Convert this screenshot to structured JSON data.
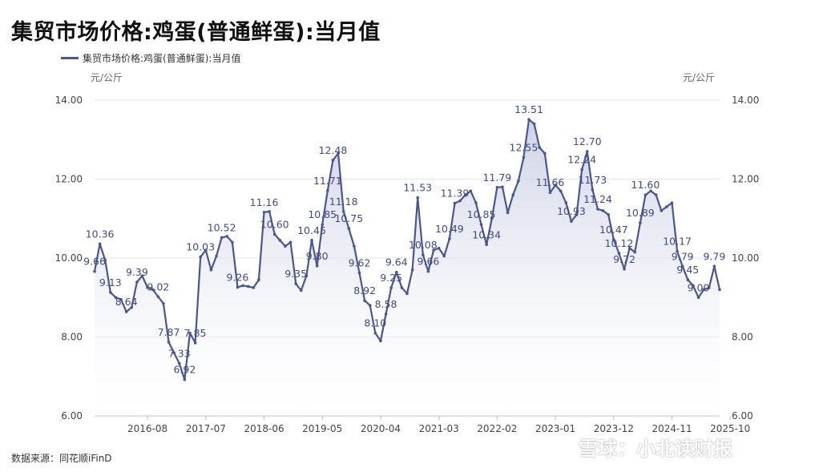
{
  "title": "集贸市场价格:鸡蛋(普通鲜蛋):当月值",
  "source": "数据来源：同花顺iFinD",
  "watermark": "雪球：小北读财报",
  "colors": {
    "line": "#4a568f",
    "area_top": "#c9cde3",
    "area_bottom": "#ffffff",
    "grid": "#e6e6e6"
  },
  "chart_data": {
    "type": "area",
    "unit_left": "元/公斤",
    "unit_right": "元/公斤",
    "ylim": [
      6,
      14
    ],
    "yticks": [
      "6.00",
      "8.00",
      "10.00",
      "12.00",
      "14.00"
    ],
    "x_start": "2015-10",
    "x_end": "2025-10",
    "xticks": [
      "2016-08",
      "2017-07",
      "2018-06",
      "2019-05",
      "2020-04",
      "2021-03",
      "2022-02",
      "2023-01",
      "2023-12",
      "2024-11",
      "2025-10"
    ],
    "legend": "top-left",
    "grid": true,
    "series": [
      {
        "name": "集贸市场价格:鸡蛋(普通鲜蛋):当月值",
        "values": [
          9.66,
          10.36,
          9.95,
          9.13,
          9.0,
          8.95,
          8.64,
          8.75,
          9.39,
          9.55,
          9.25,
          9.2,
          9.02,
          8.85,
          7.87,
          7.6,
          7.33,
          6.92,
          8.1,
          7.85,
          10.03,
          10.2,
          9.7,
          10.05,
          10.52,
          10.55,
          10.4,
          9.26,
          9.3,
          9.28,
          9.25,
          9.45,
          11.16,
          11.18,
          10.6,
          10.45,
          10.3,
          10.4,
          9.35,
          9.18,
          9.55,
          10.45,
          9.8,
          10.85,
          11.71,
          12.48,
          12.65,
          11.18,
          10.75,
          10.3,
          9.62,
          8.92,
          8.8,
          8.1,
          7.9,
          8.58,
          9.25,
          9.64,
          9.25,
          9.1,
          9.7,
          11.53,
          10.08,
          9.66,
          10.2,
          10.25,
          10.05,
          10.49,
          11.39,
          11.45,
          11.6,
          11.7,
          11.4,
          10.85,
          10.34,
          11.0,
          11.79,
          11.8,
          11.15,
          11.6,
          11.95,
          12.55,
          13.51,
          13.4,
          12.8,
          12.65,
          11.66,
          11.85,
          11.7,
          11.4,
          10.93,
          11.1,
          12.24,
          12.7,
          11.73,
          11.24,
          11.2,
          11.1,
          10.47,
          10.12,
          9.72,
          10.25,
          10.15,
          10.89,
          11.6,
          11.7,
          11.6,
          11.2,
          11.3,
          11.4,
          10.17,
          9.79,
          9.45,
          9.3,
          9.0,
          9.2,
          9.25,
          9.79,
          9.2
        ]
      }
    ],
    "data_labels": [
      {
        "i": 0,
        "text": "9.66"
      },
      {
        "i": 1,
        "text": "10.36"
      },
      {
        "i": 3,
        "text": "9.13"
      },
      {
        "i": 6,
        "text": "8.64"
      },
      {
        "i": 8,
        "text": "9.39"
      },
      {
        "i": 12,
        "text": "9.02"
      },
      {
        "i": 14,
        "text": "7.87"
      },
      {
        "i": 16,
        "text": "7.33"
      },
      {
        "i": 17,
        "text": "6.92"
      },
      {
        "i": 19,
        "text": "7.85"
      },
      {
        "i": 20,
        "text": "10.03"
      },
      {
        "i": 24,
        "text": "10.52"
      },
      {
        "i": 27,
        "text": "9.26"
      },
      {
        "i": 32,
        "text": "11.16"
      },
      {
        "i": 34,
        "text": "10.60"
      },
      {
        "i": 38,
        "text": "9.35"
      },
      {
        "i": 41,
        "text": "10.45"
      },
      {
        "i": 42,
        "text": "9.80"
      },
      {
        "i": 43,
        "text": "10.85"
      },
      {
        "i": 44,
        "text": "11.71"
      },
      {
        "i": 45,
        "text": "12.48"
      },
      {
        "i": 47,
        "text": "11.18"
      },
      {
        "i": 48,
        "text": "10.75"
      },
      {
        "i": 50,
        "text": "9.62"
      },
      {
        "i": 51,
        "text": "8.92"
      },
      {
        "i": 53,
        "text": "8.10"
      },
      {
        "i": 55,
        "text": "8.58"
      },
      {
        "i": 56,
        "text": "9.25"
      },
      {
        "i": 57,
        "text": "9.64"
      },
      {
        "i": 61,
        "text": "11.53"
      },
      {
        "i": 62,
        "text": "10.08"
      },
      {
        "i": 63,
        "text": "9.66"
      },
      {
        "i": 67,
        "text": "10.49"
      },
      {
        "i": 68,
        "text": "11.39"
      },
      {
        "i": 73,
        "text": "10.85"
      },
      {
        "i": 74,
        "text": "10.34"
      },
      {
        "i": 76,
        "text": "11.79"
      },
      {
        "i": 81,
        "text": "12.55"
      },
      {
        "i": 82,
        "text": "13.51"
      },
      {
        "i": 86,
        "text": "11.66"
      },
      {
        "i": 90,
        "text": "10.93"
      },
      {
        "i": 92,
        "text": "12.24"
      },
      {
        "i": 93,
        "text": "12.70"
      },
      {
        "i": 94,
        "text": "11.73"
      },
      {
        "i": 95,
        "text": "11.24"
      },
      {
        "i": 98,
        "text": "10.47"
      },
      {
        "i": 99,
        "text": "10.12"
      },
      {
        "i": 100,
        "text": "9.72"
      },
      {
        "i": 103,
        "text": "10.89"
      },
      {
        "i": 104,
        "text": "11.60"
      },
      {
        "i": 110,
        "text": "10.17"
      },
      {
        "i": 111,
        "text": "9.79"
      },
      {
        "i": 112,
        "text": "9.45"
      },
      {
        "i": 114,
        "text": "9.00"
      },
      {
        "i": 117,
        "text": "9.79"
      }
    ]
  }
}
